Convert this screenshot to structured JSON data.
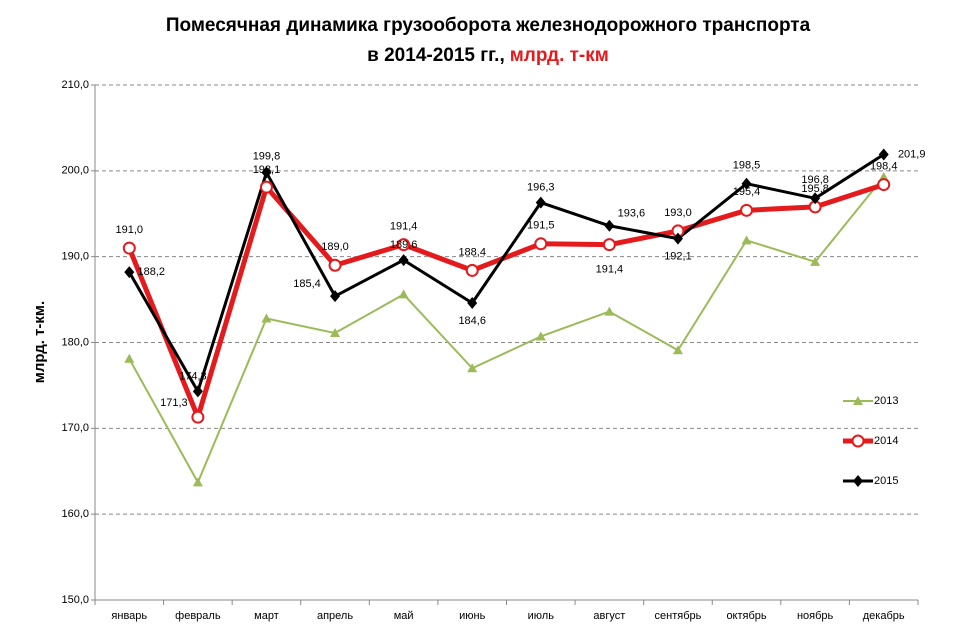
{
  "chart_data": {
    "type": "line",
    "title": "Помесячная динамика грузооборота железнодорожного транспорта",
    "subtitle": "в 2014-2015 гг.,",
    "subtitle_unit": "млрд. т-км",
    "y_label": "млрд. т-км.",
    "categories": [
      "январь",
      "февраль",
      "март",
      "апрель",
      "май",
      "июнь",
      "июль",
      "август",
      "сентябрь",
      "октябрь",
      "ноябрь",
      "декабрь"
    ],
    "series": [
      {
        "name": "2013",
        "color": "#9bbb59",
        "marker": "triangle",
        "values": [
          178.1,
          163.7,
          182.8,
          181.1,
          185.6,
          177.0,
          180.7,
          183.6,
          179.1,
          191.9,
          189.4,
          199.3
        ]
      },
      {
        "name": "2014",
        "color": "#e41a1c",
        "marker": "circle",
        "values": [
          191.0,
          171.3,
          198.1,
          189.0,
          191.4,
          188.4,
          191.5,
          191.4,
          193.0,
          195.4,
          195.8,
          198.4
        ],
        "value_labels": [
          "191,0",
          "171,3",
          "198,1",
          "189,0",
          "191,4",
          "188,4",
          "191,5",
          "191,4",
          "193,0",
          "195,4",
          "195,8",
          "198,4"
        ]
      },
      {
        "name": "2015",
        "color": "#000000",
        "marker": "diamond",
        "values": [
          188.2,
          174.3,
          199.8,
          185.4,
          189.6,
          184.6,
          196.3,
          193.6,
          192.1,
          198.5,
          196.8,
          201.9
        ],
        "value_labels": [
          "188,2",
          "174,3",
          "199,8",
          "185,4",
          "189,6",
          "184,6",
          "196,3",
          "193,6",
          "192,1",
          "198,5",
          "196,8",
          "201,9"
        ]
      }
    ],
    "ylim": [
      150,
      210
    ],
    "yticks": [
      {
        "value": 150,
        "label": "150,0"
      },
      {
        "value": 160,
        "label": "160,0"
      },
      {
        "value": 170,
        "label": "170,0"
      },
      {
        "value": 180,
        "label": "180,0"
      },
      {
        "value": 190,
        "label": "190,0"
      },
      {
        "value": 200,
        "label": "200,0"
      },
      {
        "value": 210,
        "label": "210,0"
      }
    ],
    "grid": true,
    "legend": "right"
  }
}
